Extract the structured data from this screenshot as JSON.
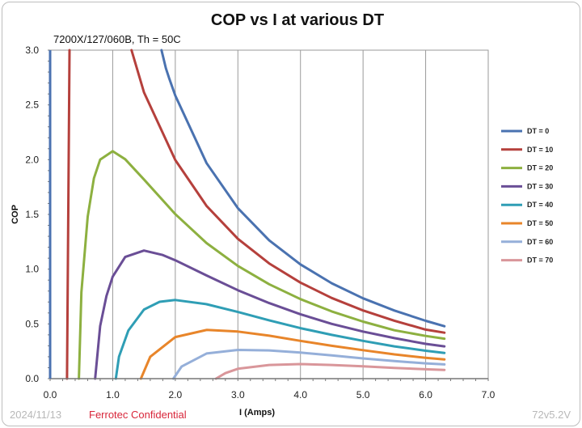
{
  "chart_data": {
    "type": "line",
    "title": "COP vs I at various DT",
    "subtitle": "7200X/127/060B, Th = 50C",
    "xlabel": "I (Amps)",
    "ylabel": "COP",
    "xlim": [
      0,
      7
    ],
    "ylim": [
      0,
      3
    ],
    "xticks": [
      "0.0",
      "1.0",
      "2.0",
      "3.0",
      "4.0",
      "5.0",
      "6.0",
      "7.0"
    ],
    "yticks": [
      "0.0",
      "0.5",
      "1.0",
      "1.5",
      "2.0",
      "2.5",
      "3.0"
    ],
    "grid": "vertical",
    "legend_position": "right",
    "series": [
      {
        "name": "DT = 0",
        "color": "#4a72b0",
        "x": [
          1.78,
          1.85,
          1.9,
          2.0,
          2.5,
          3.0,
          3.5,
          4.0,
          4.5,
          5.0,
          5.5,
          6.0,
          6.3
        ],
        "y": [
          3.0,
          2.835,
          2.747,
          2.585,
          1.968,
          1.557,
          1.263,
          1.043,
          0.871,
          0.734,
          0.622,
          0.528,
          0.479
        ]
      },
      {
        "name": "DT = 10",
        "color": "#b5403c",
        "x": [
          0.27,
          0.31,
          null,
          1.3,
          1.5,
          2.0,
          2.5,
          3.0,
          3.5,
          4.0,
          4.5,
          5.0,
          5.5,
          6.0,
          6.3
        ],
        "y": [
          0,
          3.0,
          null,
          3.0,
          2.615,
          1.996,
          1.577,
          1.277,
          1.052,
          0.877,
          0.737,
          0.623,
          0.529,
          0.448,
          0.42
        ]
      },
      {
        "name": "DT = 20",
        "color": "#8db040",
        "x": [
          0.46,
          0.5,
          0.6,
          0.7,
          0.8,
          1.0,
          1.2,
          1.5,
          2.0,
          2.5,
          3.0,
          3.5,
          4.0,
          4.5,
          5.0,
          5.5,
          6.0,
          6.3
        ],
        "y": [
          0,
          0.79,
          1.48,
          1.83,
          2.0,
          2.077,
          2.004,
          1.819,
          1.502,
          1.238,
          1.029,
          0.862,
          0.726,
          0.614,
          0.521,
          0.442,
          0.39,
          0.365
        ]
      },
      {
        "name": "DT = 30",
        "color": "#6a4e96",
        "x": [
          0.72,
          0.8,
          0.9,
          1.0,
          1.2,
          1.5,
          1.8,
          2.0,
          2.5,
          3.0,
          3.5,
          4.0,
          4.5,
          5.0,
          5.5,
          6.0,
          6.3
        ],
        "y": [
          0,
          0.48,
          0.755,
          0.932,
          1.111,
          1.17,
          1.129,
          1.081,
          0.942,
          0.808,
          0.69,
          0.588,
          0.5,
          0.43,
          0.37,
          0.318,
          0.295
        ]
      },
      {
        "name": "DT = 40",
        "color": "#2f9eb5",
        "x": [
          1.05,
          1.1,
          1.25,
          1.5,
          1.75,
          2.0,
          2.5,
          3.0,
          3.5,
          4.0,
          4.5,
          5.0,
          5.5,
          6.0,
          6.3
        ],
        "y": [
          0,
          0.2,
          0.44,
          0.631,
          0.702,
          0.718,
          0.68,
          0.609,
          0.533,
          0.461,
          0.4,
          0.345,
          0.295,
          0.255,
          0.235
        ]
      },
      {
        "name": "DT = 50",
        "color": "#e8852a",
        "x": [
          1.45,
          1.6,
          2.0,
          2.5,
          3.0,
          3.5,
          4.0,
          4.5,
          5.0,
          5.5,
          6.0,
          6.3
        ],
        "y": [
          0,
          0.2,
          0.38,
          0.445,
          0.43,
          0.392,
          0.345,
          0.3,
          0.26,
          0.222,
          0.19,
          0.175
        ]
      },
      {
        "name": "DT = 60",
        "color": "#95afd9",
        "x": [
          1.97,
          2.1,
          2.5,
          3.0,
          3.5,
          4.0,
          4.5,
          5.0,
          5.5,
          6.0,
          6.3
        ],
        "y": [
          0,
          0.11,
          0.23,
          0.262,
          0.258,
          0.238,
          0.212,
          0.185,
          0.16,
          0.14,
          0.13
        ]
      },
      {
        "name": "DT = 70",
        "color": "#d9969a",
        "x": [
          2.65,
          2.8,
          3.0,
          3.5,
          4.0,
          4.5,
          5.0,
          5.5,
          6.0,
          6.3
        ],
        "y": [
          0,
          0.05,
          0.09,
          0.125,
          0.133,
          0.125,
          0.112,
          0.098,
          0.086,
          0.08
        ]
      }
    ]
  },
  "footer": {
    "date": "2024/11/13",
    "confidential": "Ferrotec Confidential",
    "version": "72v5.2V"
  }
}
